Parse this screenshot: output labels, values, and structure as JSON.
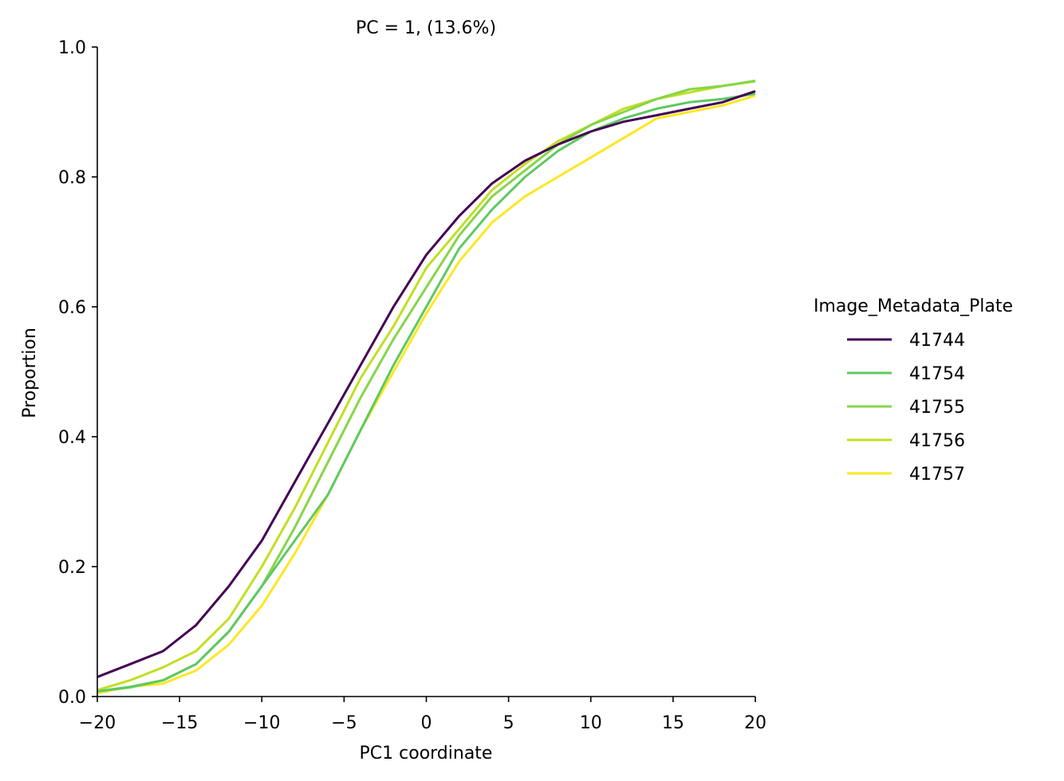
{
  "chart_data": {
    "type": "line",
    "title": "PC = 1, (13.6%)",
    "xlabel": "PC1 coordinate",
    "ylabel": "Proportion",
    "xlim": [
      -20,
      20
    ],
    "ylim": [
      0,
      1
    ],
    "xticks": [
      -20,
      -15,
      -10,
      -5,
      0,
      5,
      10,
      15,
      20
    ],
    "yticks": [
      0,
      0.2,
      0.4,
      0.6,
      0.8,
      1.0
    ],
    "xtick_labels": [
      "−20",
      "−15",
      "−10",
      "−5",
      "0",
      "5",
      "10",
      "15",
      "20"
    ],
    "ytick_labels": [
      "0.0",
      "0.2",
      "0.4",
      "0.6",
      "0.8",
      "1.0"
    ],
    "grid": false,
    "legend": {
      "title": "Image_Metadata_Plate",
      "placement": "right"
    },
    "x": [
      -20,
      -18,
      -16,
      -14,
      -12,
      -10,
      -8,
      -6,
      -4,
      -2,
      0,
      2,
      4,
      6,
      8,
      10,
      12,
      14,
      16,
      18,
      20
    ],
    "series": [
      {
        "name": "41744",
        "color": "#440154",
        "values": [
          0.03,
          0.05,
          0.07,
          0.11,
          0.17,
          0.24,
          0.33,
          0.42,
          0.51,
          0.6,
          0.68,
          0.74,
          0.79,
          0.825,
          0.85,
          0.87,
          0.885,
          0.895,
          0.905,
          0.915,
          0.932
        ]
      },
      {
        "name": "41754",
        "color": "#5ec962",
        "values": [
          0.008,
          0.015,
          0.025,
          0.05,
          0.1,
          0.17,
          0.24,
          0.31,
          0.41,
          0.51,
          0.6,
          0.69,
          0.75,
          0.8,
          0.84,
          0.87,
          0.89,
          0.905,
          0.915,
          0.92,
          0.928
        ]
      },
      {
        "name": "41755",
        "color": "#86d549",
        "values": [
          0.008,
          0.014,
          0.025,
          0.05,
          0.1,
          0.17,
          0.26,
          0.36,
          0.46,
          0.55,
          0.63,
          0.71,
          0.77,
          0.81,
          0.85,
          0.88,
          0.9,
          0.92,
          0.935,
          0.94,
          0.948
        ]
      },
      {
        "name": "41756",
        "color": "#c2df23",
        "values": [
          0.01,
          0.025,
          0.045,
          0.07,
          0.12,
          0.2,
          0.29,
          0.39,
          0.49,
          0.57,
          0.66,
          0.72,
          0.78,
          0.82,
          0.855,
          0.88,
          0.905,
          0.92,
          0.93,
          0.94,
          0.947
        ]
      },
      {
        "name": "41757",
        "color": "#fde725",
        "values": [
          0.005,
          0.015,
          0.02,
          0.04,
          0.08,
          0.14,
          0.22,
          0.31,
          0.41,
          0.5,
          0.59,
          0.67,
          0.73,
          0.77,
          0.8,
          0.83,
          0.86,
          0.89,
          0.9,
          0.91,
          0.925
        ]
      }
    ]
  }
}
